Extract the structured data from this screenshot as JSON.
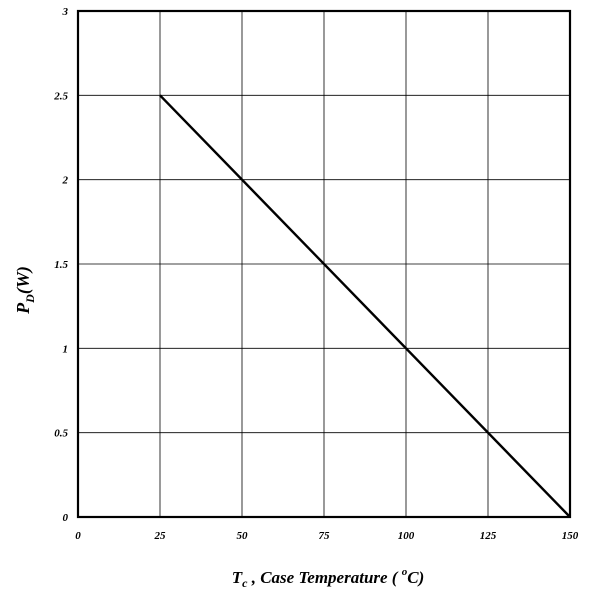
{
  "chart_data": {
    "type": "line",
    "x_ticks": [
      0,
      25,
      50,
      75,
      100,
      125,
      150
    ],
    "y_ticks": [
      0,
      0.5,
      1,
      1.5,
      2,
      2.5,
      3
    ],
    "xlim": [
      0,
      150
    ],
    "ylim": [
      0,
      3
    ],
    "grid": true,
    "legend": "none",
    "series": [
      {
        "x": [
          25,
          150
        ],
        "y": [
          2.5,
          0
        ],
        "color": "#000000"
      }
    ],
    "xlabel": {
      "main": "T",
      "sub": "c",
      "text": " , Case Temperature ( ",
      "sup": "o",
      "end": "C)"
    },
    "ylabel": {
      "main": "P",
      "sub": "D",
      "end": "(W)"
    }
  }
}
